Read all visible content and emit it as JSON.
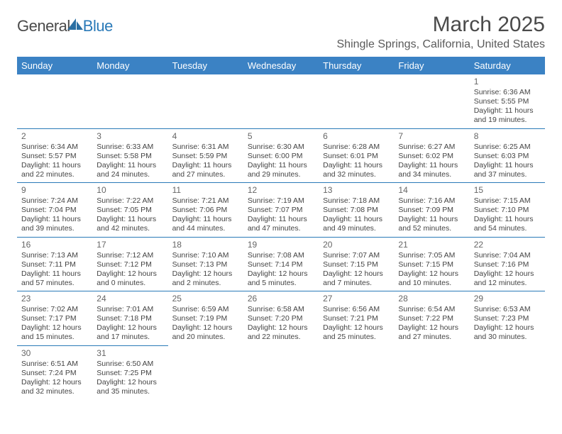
{
  "logo": {
    "part1": "General",
    "part2": "Blue"
  },
  "title": "March 2025",
  "location": "Shingle Springs, California, United States",
  "colors": {
    "header_bg": "#3b82c4",
    "header_text": "#ffffff",
    "cell_border": "#2a7ab8",
    "title_color": "#4a4a4a",
    "logo_blue": "#2a7ab8",
    "body_text": "#444444",
    "background": "#ffffff"
  },
  "weekdays": [
    "Sunday",
    "Monday",
    "Tuesday",
    "Wednesday",
    "Thursday",
    "Friday",
    "Saturday"
  ],
  "weeks": [
    [
      null,
      null,
      null,
      null,
      null,
      null,
      {
        "n": "1",
        "sr": "Sunrise: 6:36 AM",
        "ss": "Sunset: 5:55 PM",
        "dl": "Daylight: 11 hours and 19 minutes."
      }
    ],
    [
      {
        "n": "2",
        "sr": "Sunrise: 6:34 AM",
        "ss": "Sunset: 5:57 PM",
        "dl": "Daylight: 11 hours and 22 minutes."
      },
      {
        "n": "3",
        "sr": "Sunrise: 6:33 AM",
        "ss": "Sunset: 5:58 PM",
        "dl": "Daylight: 11 hours and 24 minutes."
      },
      {
        "n": "4",
        "sr": "Sunrise: 6:31 AM",
        "ss": "Sunset: 5:59 PM",
        "dl": "Daylight: 11 hours and 27 minutes."
      },
      {
        "n": "5",
        "sr": "Sunrise: 6:30 AM",
        "ss": "Sunset: 6:00 PM",
        "dl": "Daylight: 11 hours and 29 minutes."
      },
      {
        "n": "6",
        "sr": "Sunrise: 6:28 AM",
        "ss": "Sunset: 6:01 PM",
        "dl": "Daylight: 11 hours and 32 minutes."
      },
      {
        "n": "7",
        "sr": "Sunrise: 6:27 AM",
        "ss": "Sunset: 6:02 PM",
        "dl": "Daylight: 11 hours and 34 minutes."
      },
      {
        "n": "8",
        "sr": "Sunrise: 6:25 AM",
        "ss": "Sunset: 6:03 PM",
        "dl": "Daylight: 11 hours and 37 minutes."
      }
    ],
    [
      {
        "n": "9",
        "sr": "Sunrise: 7:24 AM",
        "ss": "Sunset: 7:04 PM",
        "dl": "Daylight: 11 hours and 39 minutes."
      },
      {
        "n": "10",
        "sr": "Sunrise: 7:22 AM",
        "ss": "Sunset: 7:05 PM",
        "dl": "Daylight: 11 hours and 42 minutes."
      },
      {
        "n": "11",
        "sr": "Sunrise: 7:21 AM",
        "ss": "Sunset: 7:06 PM",
        "dl": "Daylight: 11 hours and 44 minutes."
      },
      {
        "n": "12",
        "sr": "Sunrise: 7:19 AM",
        "ss": "Sunset: 7:07 PM",
        "dl": "Daylight: 11 hours and 47 minutes."
      },
      {
        "n": "13",
        "sr": "Sunrise: 7:18 AM",
        "ss": "Sunset: 7:08 PM",
        "dl": "Daylight: 11 hours and 49 minutes."
      },
      {
        "n": "14",
        "sr": "Sunrise: 7:16 AM",
        "ss": "Sunset: 7:09 PM",
        "dl": "Daylight: 11 hours and 52 minutes."
      },
      {
        "n": "15",
        "sr": "Sunrise: 7:15 AM",
        "ss": "Sunset: 7:10 PM",
        "dl": "Daylight: 11 hours and 54 minutes."
      }
    ],
    [
      {
        "n": "16",
        "sr": "Sunrise: 7:13 AM",
        "ss": "Sunset: 7:11 PM",
        "dl": "Daylight: 11 hours and 57 minutes."
      },
      {
        "n": "17",
        "sr": "Sunrise: 7:12 AM",
        "ss": "Sunset: 7:12 PM",
        "dl": "Daylight: 12 hours and 0 minutes."
      },
      {
        "n": "18",
        "sr": "Sunrise: 7:10 AM",
        "ss": "Sunset: 7:13 PM",
        "dl": "Daylight: 12 hours and 2 minutes."
      },
      {
        "n": "19",
        "sr": "Sunrise: 7:08 AM",
        "ss": "Sunset: 7:14 PM",
        "dl": "Daylight: 12 hours and 5 minutes."
      },
      {
        "n": "20",
        "sr": "Sunrise: 7:07 AM",
        "ss": "Sunset: 7:15 PM",
        "dl": "Daylight: 12 hours and 7 minutes."
      },
      {
        "n": "21",
        "sr": "Sunrise: 7:05 AM",
        "ss": "Sunset: 7:15 PM",
        "dl": "Daylight: 12 hours and 10 minutes."
      },
      {
        "n": "22",
        "sr": "Sunrise: 7:04 AM",
        "ss": "Sunset: 7:16 PM",
        "dl": "Daylight: 12 hours and 12 minutes."
      }
    ],
    [
      {
        "n": "23",
        "sr": "Sunrise: 7:02 AM",
        "ss": "Sunset: 7:17 PM",
        "dl": "Daylight: 12 hours and 15 minutes."
      },
      {
        "n": "24",
        "sr": "Sunrise: 7:01 AM",
        "ss": "Sunset: 7:18 PM",
        "dl": "Daylight: 12 hours and 17 minutes."
      },
      {
        "n": "25",
        "sr": "Sunrise: 6:59 AM",
        "ss": "Sunset: 7:19 PM",
        "dl": "Daylight: 12 hours and 20 minutes."
      },
      {
        "n": "26",
        "sr": "Sunrise: 6:58 AM",
        "ss": "Sunset: 7:20 PM",
        "dl": "Daylight: 12 hours and 22 minutes."
      },
      {
        "n": "27",
        "sr": "Sunrise: 6:56 AM",
        "ss": "Sunset: 7:21 PM",
        "dl": "Daylight: 12 hours and 25 minutes."
      },
      {
        "n": "28",
        "sr": "Sunrise: 6:54 AM",
        "ss": "Sunset: 7:22 PM",
        "dl": "Daylight: 12 hours and 27 minutes."
      },
      {
        "n": "29",
        "sr": "Sunrise: 6:53 AM",
        "ss": "Sunset: 7:23 PM",
        "dl": "Daylight: 12 hours and 30 minutes."
      }
    ],
    [
      {
        "n": "30",
        "sr": "Sunrise: 6:51 AM",
        "ss": "Sunset: 7:24 PM",
        "dl": "Daylight: 12 hours and 32 minutes."
      },
      {
        "n": "31",
        "sr": "Sunrise: 6:50 AM",
        "ss": "Sunset: 7:25 PM",
        "dl": "Daylight: 12 hours and 35 minutes."
      },
      null,
      null,
      null,
      null,
      null
    ]
  ]
}
